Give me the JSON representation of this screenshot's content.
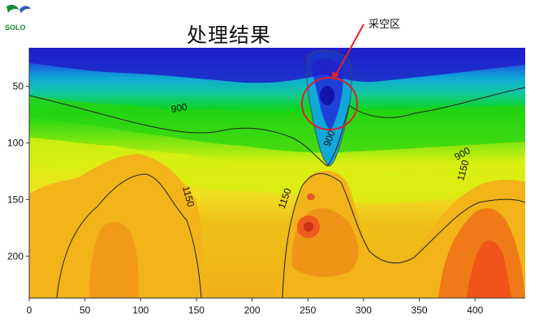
{
  "title": "处理结果",
  "logo_text": "SOLO",
  "annotation": {
    "text": "采空区",
    "color": "#e0202a"
  },
  "chart_data": {
    "type": "heatmap",
    "title": "处理结果",
    "x_ticks": [
      0,
      50,
      100,
      150,
      200,
      250,
      300,
      350,
      400
    ],
    "y_ticks": [
      50,
      100,
      150,
      200
    ],
    "xlim": [
      0,
      445
    ],
    "ylim": [
      237,
      7
    ],
    "contour_labels": [
      {
        "text": "900",
        "x": 135,
        "y": 72
      },
      {
        "text": "900",
        "x": 390,
        "y": 112
      },
      {
        "text": "900",
        "x": 272,
        "y": 97
      },
      {
        "text": "1150",
        "x": 140,
        "y": 148
      },
      {
        "text": "1150",
        "x": 232,
        "y": 150
      },
      {
        "text": "1150",
        "x": 392,
        "y": 125
      }
    ],
    "colors": {
      "low": "#1e1ec8",
      "mid_low": "#10a8d8",
      "mid": "#10d418",
      "mid_high": "#d8f010",
      "high": "#f0b818",
      "max": "#f05418"
    }
  }
}
